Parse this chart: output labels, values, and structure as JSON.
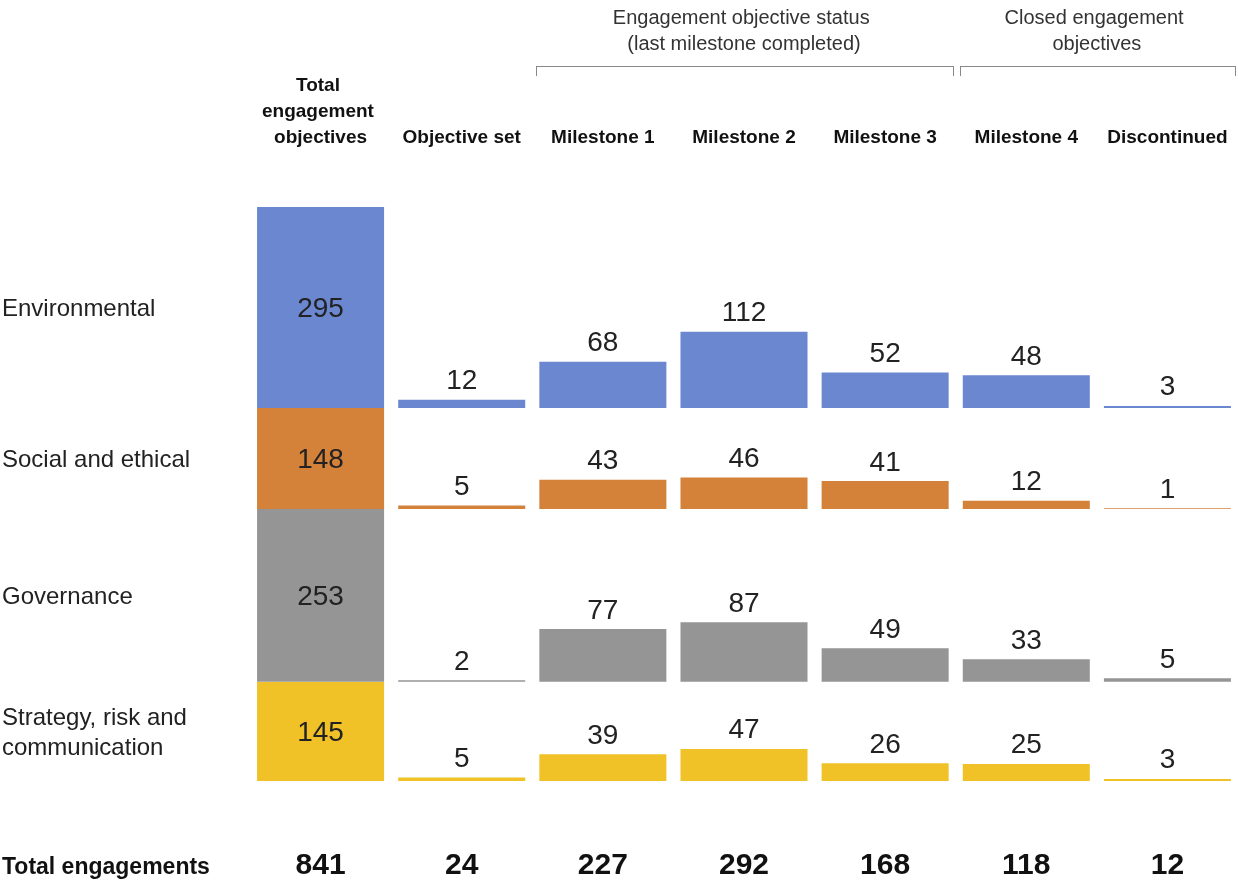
{
  "chart_data": [
    {
      "type": "bar",
      "categories": [
        "Total engagement objectives",
        "Objective set",
        "Milestone 1",
        "Milestone 2",
        "Milestone 3",
        "Milestone 4",
        "Discontinued"
      ],
      "series": [
        {
          "name": "Environmental",
          "color": "#6b87d0",
          "values": [
            295,
            12,
            68,
            112,
            52,
            48,
            3
          ]
        }
      ],
      "annotations": [
        "Engagement objective status (last milestone completed)",
        "Closed engagement objectives"
      ],
      "data_labels": true,
      "legend": false,
      "tick_labels": "x"
    },
    {
      "type": "bar",
      "categories": [
        "Total engagement objectives",
        "Objective set",
        "Milestone 1",
        "Milestone 2",
        "Milestone 3",
        "Milestone 4",
        "Discontinued"
      ],
      "series": [
        {
          "name": "Social and ethical",
          "color": "#d4813a",
          "values": [
            148,
            5,
            43,
            46,
            41,
            12,
            1
          ]
        }
      ],
      "data_labels": true,
      "legend": false,
      "tick_labels": false
    },
    {
      "type": "bar",
      "categories": [
        "Total engagement objectives",
        "Objective set",
        "Milestone 1",
        "Milestone 2",
        "Milestone 3",
        "Milestone 4",
        "Discontinued"
      ],
      "series": [
        {
          "name": "Governance",
          "color": "#959595",
          "values": [
            253,
            2,
            77,
            87,
            49,
            33,
            5
          ]
        }
      ],
      "data_labels": true,
      "legend": false,
      "tick_labels": false
    },
    {
      "type": "bar",
      "categories": [
        "Total engagement objectives",
        "Objective set",
        "Milestone 1",
        "Milestone 2",
        "Milestone 3",
        "Milestone 4",
        "Discontinued"
      ],
      "series": [
        {
          "name": "Strategy, risk and communication",
          "color": "#f0c228",
          "values": [
            145,
            5,
            39,
            47,
            26,
            25,
            3
          ]
        }
      ],
      "data_labels": true,
      "legend": false,
      "tick_labels": false
    },
    {
      "type": "other",
      "annotations": [
        "Total engagements",
        "841",
        "24",
        "227",
        "292",
        "168",
        "118",
        "12"
      ]
    }
  ]
}
